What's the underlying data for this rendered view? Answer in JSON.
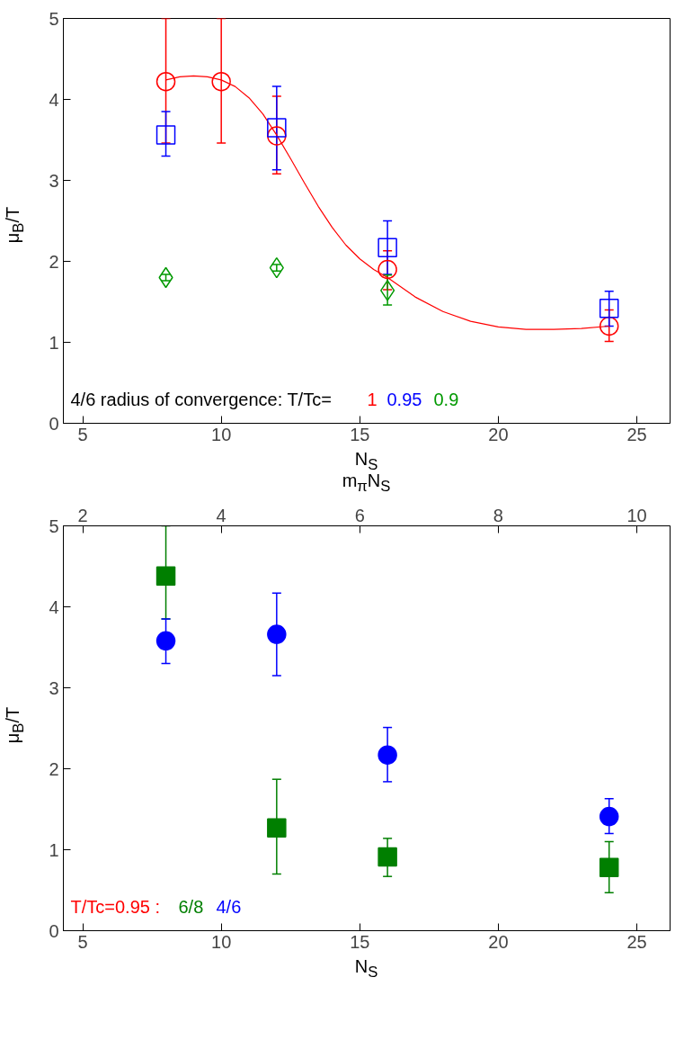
{
  "chart_data": [
    {
      "type": "scatter",
      "xlabel": "N$_{S}$",
      "ylabel": "μ$_{B}$/T",
      "xlim": [
        4.3,
        26.2
      ],
      "ylim": [
        0,
        5
      ],
      "xticks": [
        5,
        10,
        15,
        20,
        25
      ],
      "yticks": [
        0,
        1,
        2,
        3,
        4,
        5
      ],
      "grid": false,
      "legend": "bottom",
      "annotations": [
        "4/6 radius of convergence: T/Tc="
      ],
      "series": [
        {
          "type": "line",
          "color": "#ff0000",
          "marker": "none",
          "x": [
            8,
            8.5,
            9,
            9.5,
            10,
            10.5,
            11,
            11.5,
            12,
            12.5,
            13,
            13.5,
            14,
            14.5,
            15,
            15.5,
            16,
            17,
            18,
            19,
            20,
            21,
            22,
            23,
            24
          ],
          "values": [
            4.24,
            4.28,
            4.29,
            4.28,
            4.24,
            4.16,
            4.02,
            3.82,
            3.56,
            3.27,
            2.97,
            2.68,
            2.42,
            2.2,
            2.03,
            1.9,
            1.8,
            1.56,
            1.38,
            1.26,
            1.19,
            1.16,
            1.16,
            1.17,
            1.2
          ]
        },
        {
          "name": "1",
          "color": "#ff0000",
          "marker": "circle",
          "x": [
            8,
            10,
            12,
            16,
            24
          ],
          "values": [
            4.22,
            4.22,
            3.55,
            1.9,
            1.2
          ],
          "errors": [
            [
              3.46,
              5.0
            ],
            [
              3.46,
              5.0
            ],
            [
              3.08,
              4.04
            ],
            [
              1.65,
              2.13
            ],
            [
              1.01,
              1.4
            ]
          ]
        },
        {
          "name": "0.95",
          "color": "#0000ff",
          "marker": "square",
          "x": [
            8,
            12,
            16,
            24
          ],
          "values": [
            3.56,
            3.65,
            2.17,
            1.42
          ],
          "errors": [
            [
              3.3,
              3.85
            ],
            [
              3.13,
              4.16
            ],
            [
              1.84,
              2.5
            ],
            [
              1.2,
              1.63
            ]
          ]
        },
        {
          "name": "0.9",
          "color": "#009900",
          "marker": "diamond",
          "x": [
            8,
            12,
            16
          ],
          "values": [
            1.8,
            1.92,
            1.64
          ],
          "errors": [
            [
              1.76,
              1.84
            ],
            [
              1.88,
              1.96
            ],
            [
              1.46,
              1.83
            ]
          ]
        }
      ]
    },
    {
      "type": "scatter",
      "xlabel": "N$_{S}$",
      "ylabel": "μ$_{B}$/T",
      "x2label": "m$_{π}$N$_{S}$",
      "xlim": [
        4.3,
        26.2
      ],
      "ylim": [
        0,
        5
      ],
      "x2lim": [
        1.72,
        10.48
      ],
      "xticks": [
        5,
        10,
        15,
        20,
        25
      ],
      "x2ticks": [
        2,
        4,
        6,
        8,
        10
      ],
      "yticks": [
        0,
        1,
        2,
        3,
        4,
        5
      ],
      "grid": false,
      "legend": "bottom left",
      "annotations": [
        "T/Tc=0.95 :"
      ],
      "series": [
        {
          "name": "6/8",
          "color": "#007f00",
          "marker": "square",
          "x": [
            8,
            12,
            16,
            24
          ],
          "values": [
            4.38,
            1.27,
            0.91,
            0.78
          ],
          "errors": [
            [
              3.85,
              5.0
            ],
            [
              0.7,
              1.87
            ],
            [
              0.67,
              1.14
            ],
            [
              0.47,
              1.1
            ]
          ]
        },
        {
          "name": "4/6",
          "color": "#0000ff",
          "marker": "circle",
          "x": [
            8,
            12,
            16,
            24
          ],
          "values": [
            3.58,
            3.66,
            2.17,
            1.41
          ],
          "errors": [
            [
              3.3,
              3.85
            ],
            [
              3.15,
              4.17
            ],
            [
              1.84,
              2.51
            ],
            [
              1.2,
              1.63
            ]
          ]
        }
      ]
    }
  ]
}
